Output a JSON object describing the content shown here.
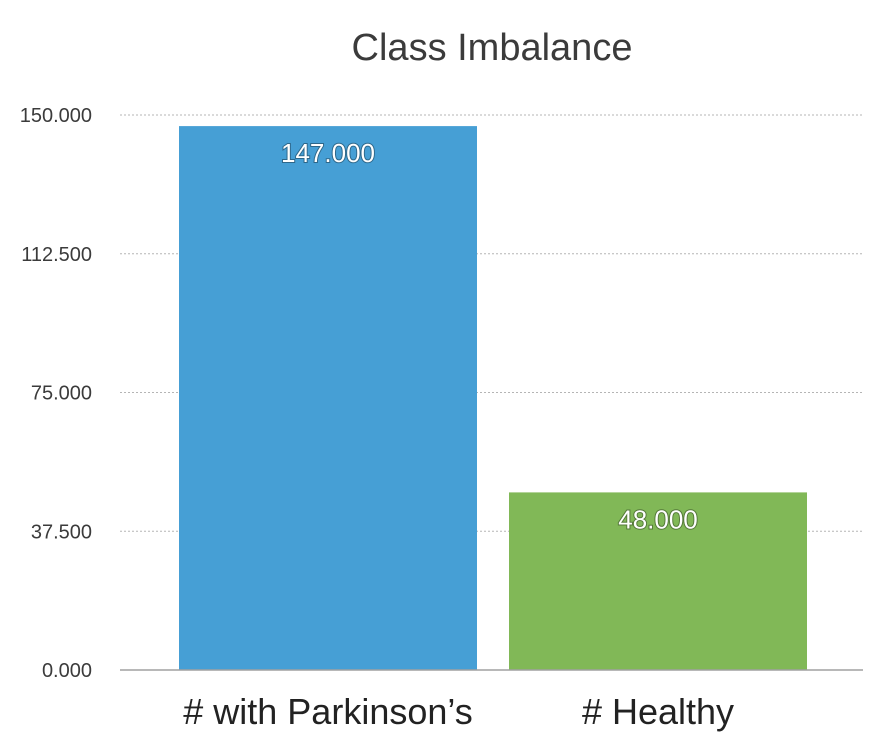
{
  "chart_data": {
    "type": "bar",
    "title": "Class Imbalance",
    "xlabel": "",
    "ylabel": "",
    "categories": [
      "# with Parkinson’s",
      "# Healthy"
    ],
    "values": [
      147,
      48
    ],
    "data_labels": [
      "147.000",
      "48.000"
    ],
    "ylim": [
      0,
      150
    ],
    "yticks": [
      0,
      37.5,
      75,
      112.5,
      150
    ],
    "ytick_labels": [
      "0.000",
      "37.500",
      "75.000",
      "112.500",
      "150.000"
    ],
    "bar_colors": [
      "#469fd5",
      "#81b857"
    ],
    "grid": true,
    "legend": false
  }
}
